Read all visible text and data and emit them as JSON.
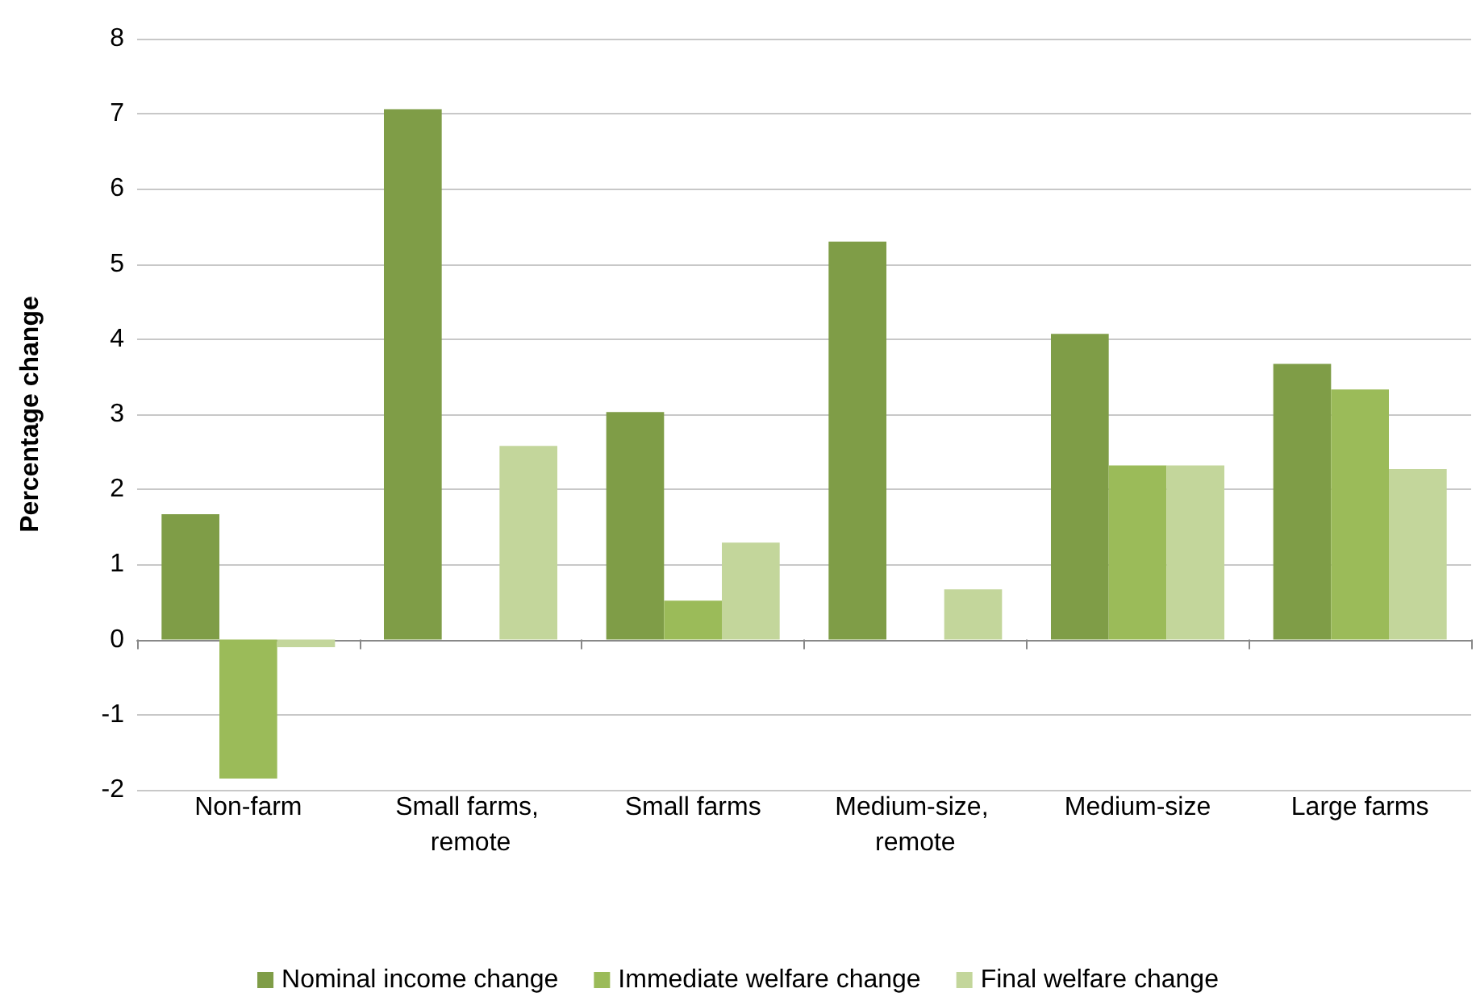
{
  "chart_data": {
    "type": "bar",
    "ylabel": "Percentage change",
    "categories": [
      "Non-farm",
      "Small farms, remote",
      "Small farms",
      "Medium-size, remote",
      "Medium-size",
      "Large farms"
    ],
    "series": [
      {
        "name": "Nominal income change",
        "color": "#7f9d47",
        "values": [
          1.67,
          7.06,
          3.03,
          5.3,
          4.07,
          3.67
        ]
      },
      {
        "name": "Immediate welfare change",
        "color": "#9bbb59",
        "values": [
          -1.85,
          0,
          0.52,
          0,
          2.32,
          3.33
        ]
      },
      {
        "name": "Final welfare change",
        "color": "#c3d69b",
        "values": [
          -0.1,
          2.58,
          1.29,
          0.67,
          2.32,
          2.27
        ]
      }
    ],
    "ylim": [
      -2,
      8
    ],
    "yticks": [
      -2,
      -1,
      0,
      1,
      2,
      3,
      4,
      5,
      6,
      7,
      8
    ],
    "grid": "y",
    "legend": "bottom"
  }
}
